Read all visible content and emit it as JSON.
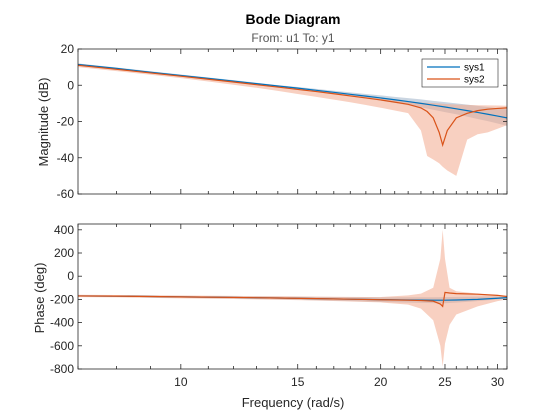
{
  "title": "Bode Diagram",
  "subtitle": "From: u1  To: y1",
  "colors": {
    "sys1": "#0072BD",
    "sys2": "#D95319",
    "sys1_band": "#9fb3c8",
    "sys2_band": "#f3a98e",
    "axes": "#262626",
    "grid": "#d9d9d9"
  },
  "chart_data": [
    {
      "type": "line",
      "panel": "magnitude",
      "ylabel": "Magnitude (dB)",
      "xscale": "log",
      "xlim": [
        7,
        31
      ],
      "ylim": [
        -60,
        20
      ],
      "yticks": [
        20,
        0,
        -20,
        -40,
        -60
      ],
      "grid": false,
      "legend": {
        "position": "top-right",
        "entries": [
          "sys1",
          "sys2"
        ]
      },
      "series": [
        {
          "name": "sys1",
          "x": [
            7,
            8,
            9,
            10,
            11,
            12,
            13,
            14,
            15,
            16,
            17,
            18,
            19,
            20,
            21,
            22,
            23,
            24,
            25,
            26,
            27,
            28,
            29,
            30,
            31
          ],
          "y": [
            11.5,
            9.3,
            7.2,
            5.4,
            3.8,
            2.3,
            0.9,
            -0.4,
            -1.6,
            -2.8,
            -3.9,
            -5.0,
            -6.0,
            -7.0,
            -8.0,
            -9.0,
            -10.0,
            -11.0,
            -12.0,
            -13.0,
            -14.0,
            -15.0,
            -16.0,
            -17.0,
            -18.0
          ],
          "band_upper": [
            12.0,
            9.8,
            7.7,
            5.9,
            4.3,
            2.8,
            1.4,
            0.1,
            -1.0,
            -2.0,
            -3.0,
            -3.9,
            -4.8,
            -5.6,
            -6.4,
            -7.1,
            -7.8,
            -8.6,
            -9.3,
            -10.0,
            -10.7,
            -11.4,
            -12.0,
            -12.7,
            -13.3
          ],
          "band_lower": [
            11.0,
            8.8,
            6.7,
            4.9,
            3.3,
            1.8,
            0.4,
            -0.9,
            -2.2,
            -3.6,
            -4.8,
            -6.1,
            -7.3,
            -8.5,
            -9.7,
            -11.0,
            -12.2,
            -13.5,
            -14.8,
            -16.0,
            -17.3,
            -18.6,
            -19.8,
            -21.1,
            -22.4
          ]
        },
        {
          "name": "sys2",
          "x": [
            7,
            8,
            9,
            10,
            11,
            12,
            13,
            14,
            15,
            16,
            17,
            18,
            19,
            20,
            21,
            22,
            23,
            23.5,
            24,
            24.5,
            24.8,
            25.2,
            26,
            27,
            28,
            29,
            30,
            31
          ],
          "y": [
            11.0,
            8.8,
            6.8,
            5.0,
            3.3,
            1.8,
            0.3,
            -1.0,
            -2.3,
            -3.5,
            -4.7,
            -5.9,
            -7.0,
            -8.1,
            -9.3,
            -10.5,
            -12.5,
            -14.5,
            -18.0,
            -26.0,
            -33.0,
            -25.0,
            -18.0,
            -15.5,
            -14.0,
            -13.2,
            -12.8,
            -12.5
          ],
          "band_upper": [
            12.0,
            9.5,
            7.5,
            5.6,
            3.8,
            2.4,
            1.0,
            -0.3,
            -1.5,
            -2.6,
            -3.7,
            -4.8,
            -5.8,
            -6.8,
            -7.8,
            -8.7,
            -9.6,
            -9.7,
            -9.8,
            -10.0,
            -10.2,
            -10.4,
            -10.6,
            -10.8,
            -11.0,
            -11.1,
            -11.2,
            -11.3
          ],
          "band_lower": [
            10.0,
            7.8,
            5.8,
            3.9,
            2.1,
            0.3,
            -1.4,
            -3.1,
            -4.8,
            -6.4,
            -7.9,
            -9.4,
            -10.9,
            -12.4,
            -13.9,
            -15.4,
            -25.0,
            -39.0,
            -41.0,
            -43.0,
            -45.0,
            -47.0,
            -50.0,
            -30.0,
            -27.0,
            -26.0,
            -24.0,
            -22.0
          ]
        }
      ]
    },
    {
      "type": "line",
      "panel": "phase",
      "ylabel": "Phase (deg)",
      "xlabel": "Frequency (rad/s)",
      "xscale": "log",
      "xlim": [
        7,
        31
      ],
      "ylim": [
        -800,
        450
      ],
      "yticks": [
        400,
        200,
        0,
        -200,
        -400,
        -600,
        -800
      ],
      "xticks": [
        10,
        15,
        20,
        25,
        30
      ],
      "grid": false,
      "series": [
        {
          "name": "sys1",
          "x": [
            7,
            8,
            9,
            10,
            12,
            14,
            16,
            18,
            20,
            22,
            24,
            25,
            26,
            28,
            30,
            31
          ],
          "y": [
            -170,
            -172,
            -175,
            -178,
            -183,
            -188,
            -193,
            -198,
            -202,
            -205,
            -207,
            -207,
            -205,
            -200,
            -190,
            -185
          ],
          "band_upper": [
            -165,
            -166,
            -168,
            -170,
            -173,
            -176,
            -178,
            -180,
            -181,
            -182,
            -182,
            -180,
            -178,
            -175,
            -175,
            -175
          ],
          "band_lower": [
            -175,
            -178,
            -182,
            -186,
            -193,
            -200,
            -208,
            -215,
            -222,
            -228,
            -232,
            -233,
            -228,
            -215,
            -200,
            -195
          ]
        },
        {
          "name": "sys2",
          "x": [
            7,
            8,
            9,
            10,
            12,
            14,
            16,
            18,
            20,
            22,
            23,
            24,
            24.6,
            24.8,
            25.0,
            25.4,
            26,
            28,
            30,
            31
          ],
          "y": [
            -170,
            -172,
            -175,
            -178,
            -183,
            -188,
            -193,
            -198,
            -203,
            -207,
            -210,
            -215,
            -240,
            -260,
            -140,
            -145,
            -150,
            -155,
            -165,
            -175
          ],
          "band_upper": [
            -160,
            -162,
            -164,
            -166,
            -170,
            -173,
            -176,
            -178,
            -180,
            -165,
            -150,
            -100,
            150,
            400,
            150,
            -100,
            -130,
            -150,
            -165,
            -170
          ],
          "band_lower": [
            -180,
            -183,
            -187,
            -191,
            -197,
            -203,
            -210,
            -218,
            -226,
            -245,
            -280,
            -380,
            -600,
            -780,
            -580,
            -420,
            -330,
            -260,
            -215,
            -200
          ]
        }
      ]
    }
  ]
}
